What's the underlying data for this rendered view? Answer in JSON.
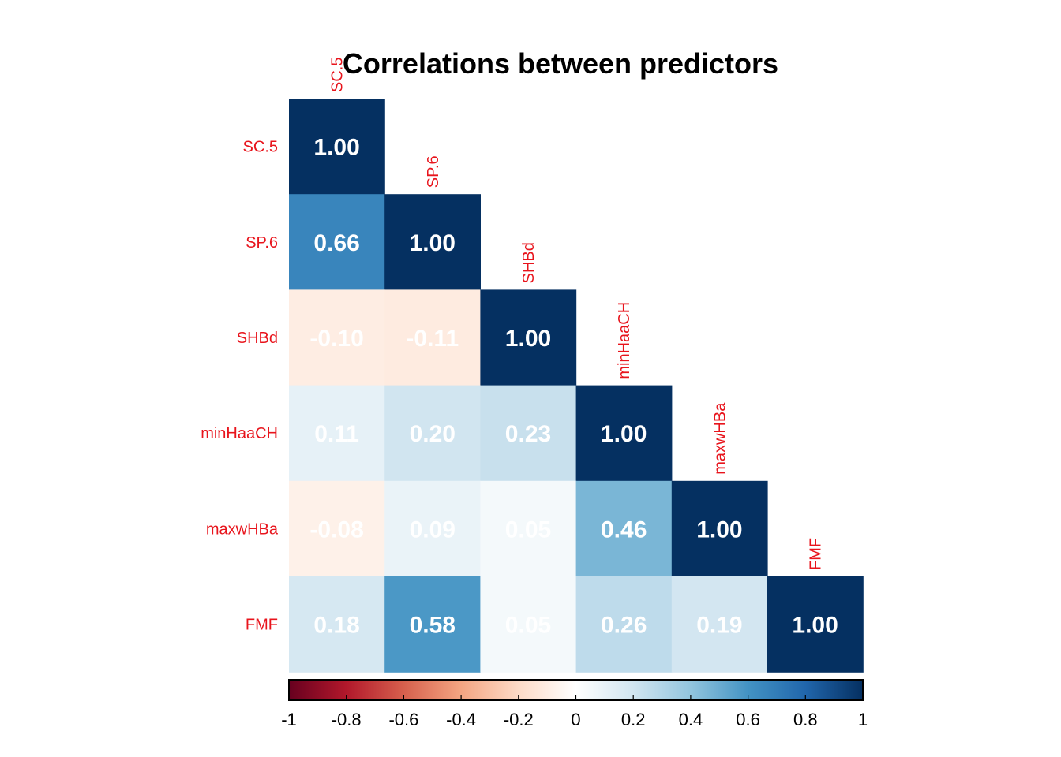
{
  "chart_data": {
    "type": "heatmap",
    "title": "Correlations between predictors",
    "shape": "lower-triangle",
    "variables": [
      "SC.5",
      "SP.6",
      "SHBd",
      "minHaaCH",
      "maxwHBa",
      "FMF"
    ],
    "column_label_visible_text": [
      "SC.5"
    ],
    "matrix": [
      [
        1.0,
        null,
        null,
        null,
        null,
        null
      ],
      [
        0.66,
        1.0,
        null,
        null,
        null,
        null
      ],
      [
        -0.1,
        -0.11,
        1.0,
        null,
        null,
        null
      ],
      [
        0.11,
        0.2,
        0.23,
        1.0,
        null,
        null
      ],
      [
        -0.08,
        0.09,
        0.05,
        0.46,
        1.0,
        null
      ],
      [
        0.18,
        0.58,
        0.05,
        0.26,
        0.19,
        1.0
      ]
    ],
    "value_labels": [
      [
        "1.00"
      ],
      [
        "0.66",
        "1.00"
      ],
      [
        "-0.10",
        "-0.11",
        "1.00"
      ],
      [
        "0.11",
        "0.20",
        "0.23",
        "1.00"
      ],
      [
        "-0.08",
        "0.09",
        "0.05",
        "0.46",
        "1.00"
      ],
      [
        "0.18",
        "0.58",
        "0.05",
        "0.26",
        "0.19",
        "1.00"
      ]
    ],
    "colorbar": {
      "range": [
        -1,
        1
      ],
      "ticks": [
        "-1",
        "-0.8",
        "-0.6",
        "-0.4",
        "-0.2",
        "0",
        "0.2",
        "0.4",
        "0.6",
        "0.8",
        "1"
      ],
      "placement": "bottom",
      "colors": [
        "#67001f",
        "#b2182b",
        "#d6604d",
        "#f4a582",
        "#fddbc7",
        "#ffffff",
        "#d1e5f0",
        "#92c5de",
        "#4393c3",
        "#2166ac",
        "#053061"
      ]
    },
    "label_color": "#e8141c"
  }
}
